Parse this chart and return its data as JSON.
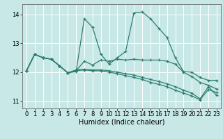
{
  "xlabel": "Humidex (Indice chaleur)",
  "bg_color": "#c8e8e8",
  "grid_color": "#ffffff",
  "line_color": "#2e7d6e",
  "ylim": [
    10.75,
    14.35
  ],
  "xlim": [
    -0.5,
    23.5
  ],
  "yticks": [
    11,
    12,
    13,
    14
  ],
  "xticks": [
    0,
    1,
    2,
    3,
    4,
    5,
    6,
    7,
    8,
    9,
    10,
    11,
    12,
    13,
    14,
    15,
    16,
    17,
    18,
    19,
    20,
    21,
    22,
    23
  ],
  "lines": [
    [
      12.05,
      12.62,
      12.5,
      12.45,
      12.22,
      11.98,
      12.02,
      13.85,
      13.55,
      12.62,
      12.28,
      12.5,
      12.72,
      14.05,
      14.08,
      13.85,
      13.52,
      13.2,
      12.5,
      12.02,
      12.0,
      11.82,
      11.72,
      11.72
    ],
    [
      12.05,
      12.62,
      12.5,
      12.45,
      12.22,
      11.98,
      12.05,
      12.38,
      12.25,
      12.42,
      12.38,
      12.45,
      12.42,
      12.45,
      12.42,
      12.42,
      12.42,
      12.38,
      12.28,
      12.0,
      11.85,
      11.65,
      11.55,
      11.42
    ],
    [
      12.05,
      12.62,
      12.5,
      12.45,
      12.22,
      11.98,
      12.05,
      12.08,
      12.05,
      12.05,
      12.0,
      11.95,
      11.88,
      11.82,
      11.75,
      11.65,
      11.58,
      11.5,
      11.38,
      11.28,
      11.18,
      11.05,
      11.4,
      11.3
    ],
    [
      12.05,
      12.62,
      12.5,
      12.45,
      12.22,
      11.98,
      12.08,
      12.1,
      12.08,
      12.08,
      12.05,
      12.0,
      11.95,
      11.9,
      11.82,
      11.75,
      11.68,
      11.6,
      11.5,
      11.38,
      11.28,
      11.08,
      11.5,
      11.2
    ]
  ],
  "xlabel_fontsize": 7,
  "tick_fontsize": 6,
  "linewidth": 0.9,
  "markersize": 2.5
}
